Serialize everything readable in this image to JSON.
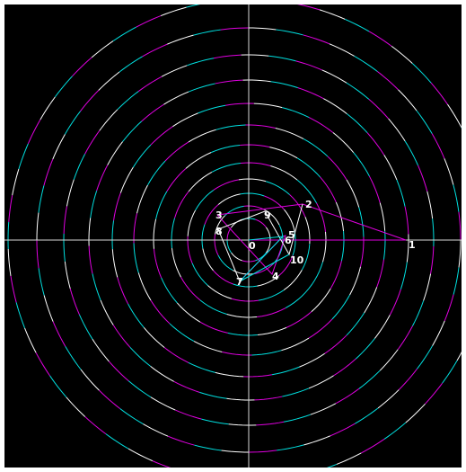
{
  "diagram": {
    "type": "polar-rings",
    "background": "#000000",
    "frame": "#ffffff",
    "axis_color": "#d8d8d8",
    "ring_colors": [
      "#ffffff",
      "#00e0e0",
      "#e000e0"
    ],
    "ring_count": 12,
    "ring_segments": [
      10,
      10,
      12,
      14,
      16,
      20,
      24,
      30,
      36,
      42,
      48,
      56
    ],
    "ring_dash_pattern": "mixed"
  },
  "labels": [
    {
      "id": "p0",
      "text": "0",
      "color": "#ffffff"
    },
    {
      "id": "p1",
      "text": "1",
      "color": "#ffffff"
    },
    {
      "id": "p2",
      "text": "2",
      "color": "#ffffff"
    },
    {
      "id": "p3",
      "text": "3",
      "color": "#ffffff"
    },
    {
      "id": "p4",
      "text": "4",
      "color": "#ffffff"
    },
    {
      "id": "p5",
      "text": "5",
      "color": "#ffffff"
    },
    {
      "id": "p6",
      "text": "6",
      "color": "#ffffff"
    },
    {
      "id": "p7",
      "text": "7",
      "color": "#ffffff"
    },
    {
      "id": "p8",
      "text": "8",
      "color": "#ffffff"
    },
    {
      "id": "p9",
      "text": "9",
      "color": "#ffffff"
    },
    {
      "id": "p10",
      "text": "10",
      "color": "#ffffff"
    }
  ],
  "paths": [
    {
      "name": "magenta-path",
      "color": "#e000e0",
      "sequence": [
        "p0",
        "p1",
        "p2",
        "p3",
        "p4",
        "p5",
        "p6",
        "p7"
      ]
    },
    {
      "name": "white-path",
      "color": "#ffffff",
      "sequence": [
        "p7",
        "p8",
        "p9",
        "p10",
        "p2"
      ]
    },
    {
      "name": "cyan-path",
      "color": "#00e0e0",
      "sequence": [
        "p0",
        "p6",
        "p7",
        "p10"
      ]
    }
  ]
}
